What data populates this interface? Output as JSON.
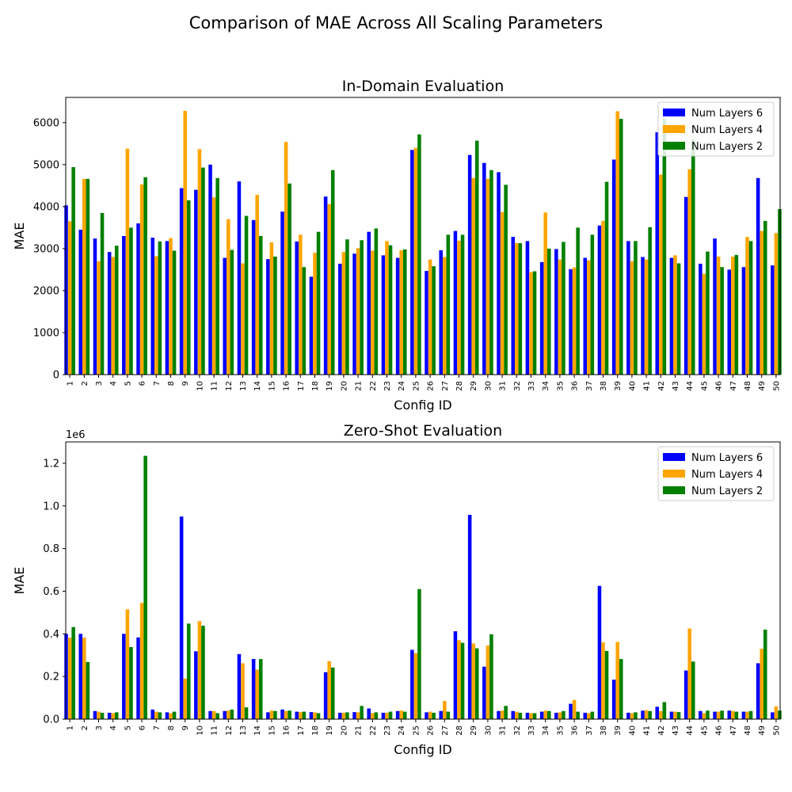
{
  "suptitle": "Comparison of MAE Across All Scaling Parameters",
  "colors": {
    "Num Layers 6": "#0000ff",
    "Num Layers 4": "#ffa500",
    "Num Layers 2": "#008000"
  },
  "chart_data": [
    {
      "type": "bar",
      "title": "In-Domain Evaluation",
      "xlabel": "Config ID",
      "ylabel": "MAE",
      "ylim": [
        0,
        6600
      ],
      "yticks": [
        0,
        1000,
        2000,
        3000,
        4000,
        5000,
        6000
      ],
      "ytick_labels": [
        "0",
        "1000",
        "2000",
        "3000",
        "4000",
        "5000",
        "6000"
      ],
      "legend_position": "top-right",
      "grid": false,
      "categories": [
        "1",
        "2",
        "3",
        "4",
        "5",
        "6",
        "7",
        "8",
        "9",
        "10",
        "11",
        "12",
        "13",
        "14",
        "15",
        "16",
        "17",
        "18",
        "19",
        "20",
        "21",
        "22",
        "23",
        "24",
        "25",
        "26",
        "27",
        "28",
        "29",
        "30",
        "31",
        "32",
        "33",
        "34",
        "35",
        "36",
        "37",
        "38",
        "39",
        "40",
        "41",
        "42",
        "43",
        "44",
        "45",
        "46",
        "47",
        "48",
        "49",
        "50"
      ],
      "series": [
        {
          "name": "Num Layers 6",
          "values": [
            4030,
            3450,
            3240,
            2920,
            3300,
            3600,
            3260,
            3180,
            4440,
            4400,
            5000,
            2780,
            4600,
            3680,
            2750,
            3880,
            3170,
            2330,
            4240,
            2640,
            2880,
            3400,
            2840,
            2780,
            5350,
            2470,
            2960,
            3420,
            5230,
            5040,
            4820,
            3280,
            3180,
            2680,
            2990,
            2510,
            2780,
            3550,
            5120,
            3180,
            2800,
            5770,
            2780,
            4230,
            2640,
            3240,
            2500,
            2560,
            4680,
            2600
          ]
        },
        {
          "name": "Num Layers 4",
          "values": [
            3650,
            4660,
            2700,
            2800,
            5380,
            4530,
            2820,
            3250,
            6280,
            5370,
            4220,
            3700,
            2650,
            4280,
            3150,
            5540,
            3330,
            2900,
            4060,
            2920,
            3010,
            2950,
            3180,
            2960,
            5400,
            2740,
            2800,
            3190,
            4680,
            4660,
            3870,
            3130,
            2440,
            3860,
            2740,
            2550,
            2720,
            3660,
            6270,
            2700,
            2740,
            4760,
            2840,
            4890,
            2400,
            2810,
            2810,
            3280,
            3420,
            3370
          ]
        },
        {
          "name": "Num Layers 2",
          "values": [
            4940,
            4660,
            3850,
            3070,
            3500,
            4700,
            3170,
            2950,
            4150,
            4930,
            4680,
            2970,
            3780,
            3300,
            2810,
            4550,
            2560,
            3400,
            4870,
            3220,
            3200,
            3480,
            3080,
            2980,
            5720,
            2580,
            3330,
            3330,
            5570,
            4870,
            4520,
            3130,
            2460,
            3000,
            3160,
            3500,
            3330,
            4590,
            6090,
            3180,
            3510,
            6090,
            2650,
            5600,
            2930,
            2560,
            2850,
            3180,
            3660,
            3940
          ]
        }
      ]
    },
    {
      "type": "bar",
      "title": "Zero-Shot Evaluation",
      "xlabel": "Config ID",
      "ylabel": "MAE",
      "ylim": [
        0,
        1300000
      ],
      "yticks": [
        0,
        200000,
        400000,
        600000,
        800000,
        1000000,
        1200000
      ],
      "ytick_labels": [
        "0.0",
        "0.2",
        "0.4",
        "0.6",
        "0.8",
        "1.0",
        "1.2"
      ],
      "scale_offset": "1e6",
      "legend_position": "top-right",
      "grid": false,
      "categories": [
        "1",
        "2",
        "3",
        "4",
        "5",
        "6",
        "7",
        "8",
        "9",
        "10",
        "11",
        "12",
        "13",
        "14",
        "15",
        "16",
        "17",
        "18",
        "19",
        "20",
        "21",
        "22",
        "23",
        "24",
        "25",
        "26",
        "27",
        "28",
        "29",
        "30",
        "31",
        "32",
        "33",
        "34",
        "35",
        "36",
        "37",
        "38",
        "39",
        "40",
        "41",
        "42",
        "43",
        "44",
        "45",
        "46",
        "47",
        "48",
        "49",
        "50"
      ],
      "series": [
        {
          "name": "Num Layers 6",
          "values": [
            400000,
            400000,
            38000,
            30000,
            400000,
            383000,
            45000,
            32000,
            950000,
            318000,
            38000,
            38000,
            305000,
            282000,
            32000,
            45000,
            35000,
            33000,
            220000,
            30000,
            33000,
            50000,
            30000,
            38000,
            325000,
            32000,
            38000,
            412000,
            958000,
            246000,
            38000,
            38000,
            30000,
            35000,
            30000,
            72000,
            30000,
            625000,
            185000,
            30000,
            40000,
            58000,
            35000,
            228000,
            38000,
            35000,
            40000,
            35000,
            262000,
            32000
          ]
        },
        {
          "name": "Num Layers 4",
          "values": [
            382000,
            382000,
            35000,
            28000,
            515000,
            545000,
            35000,
            28000,
            190000,
            460000,
            38000,
            40000,
            262000,
            232000,
            40000,
            38000,
            33000,
            32000,
            272000,
            30000,
            32000,
            28000,
            30000,
            40000,
            310000,
            35000,
            85000,
            370000,
            355000,
            345000,
            40000,
            35000,
            28000,
            40000,
            32000,
            90000,
            28000,
            360000,
            362000,
            28000,
            42000,
            38000,
            35000,
            425000,
            28000,
            35000,
            38000,
            35000,
            330000,
            60000
          ]
        },
        {
          "name": "Num Layers 2",
          "values": [
            432000,
            268000,
            30000,
            32000,
            338000,
            1235000,
            32000,
            35000,
            448000,
            438000,
            28000,
            45000,
            55000,
            282000,
            38000,
            40000,
            35000,
            28000,
            242000,
            32000,
            62000,
            32000,
            35000,
            35000,
            610000,
            30000,
            35000,
            358000,
            332000,
            398000,
            62000,
            30000,
            28000,
            38000,
            38000,
            35000,
            35000,
            320000,
            282000,
            32000,
            38000,
            80000,
            33000,
            270000,
            40000,
            40000,
            35000,
            38000,
            420000,
            40000
          ]
        }
      ]
    }
  ]
}
